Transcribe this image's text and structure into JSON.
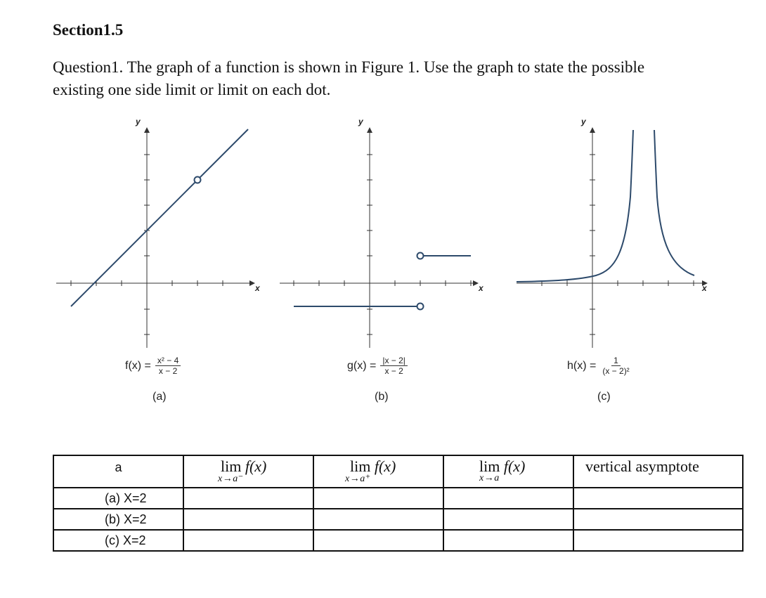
{
  "section_title": "Section1.5",
  "question": "Question1. The graph of a function is shown in Figure 1. Use the graph to state the possible existing one side limit or limit on each dot.",
  "graphs": [
    {
      "id": "a",
      "caption": "(a)",
      "fn_name": "f(x) =",
      "numerator": "x² − 4",
      "denominator": "x − 2",
      "x_axis_label": "x",
      "y_axis_label": "y"
    },
    {
      "id": "b",
      "caption": "(b)",
      "fn_name": "g(x) =",
      "numerator": "|x − 2|",
      "denominator": "x − 2",
      "x_axis_label": "x",
      "y_axis_label": "y"
    },
    {
      "id": "c",
      "caption": "(c)",
      "fn_name": "h(x) =",
      "numerator": "1",
      "denominator": "(x − 2)²",
      "x_axis_label": "x",
      "y_axis_label": "y"
    }
  ],
  "table": {
    "headers": {
      "a": "a",
      "left_limit": {
        "lim": "lim",
        "fx": "f(x)",
        "sub": "x→a⁻"
      },
      "right_limit": {
        "lim": "lim",
        "fx": "f(x)",
        "sub": "x→a⁺"
      },
      "limit": {
        "lim": "lim",
        "fx": "f(x)",
        "sub": "x→a"
      },
      "vertical_asymptote": "vertical asymptote"
    },
    "rows": [
      {
        "label": "(a)  X=2"
      },
      {
        "label": "(b)  X=2"
      },
      {
        "label": "(c)  X=2"
      }
    ]
  },
  "colors": {
    "curve": "#2d4a6b",
    "axis": "#333333"
  }
}
